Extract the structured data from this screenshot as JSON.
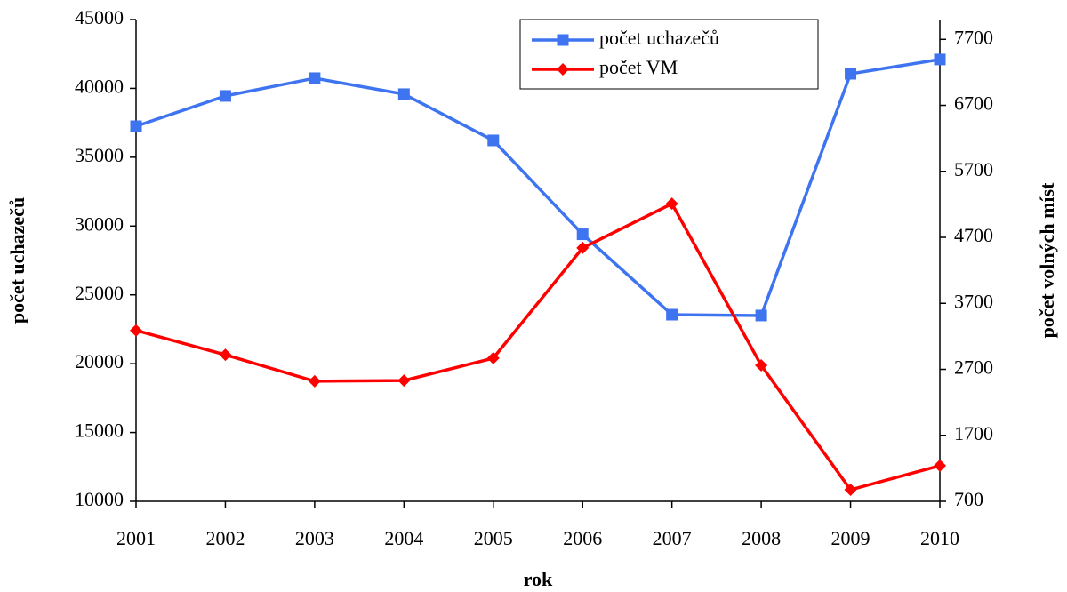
{
  "chart_data": {
    "type": "line",
    "x_label": "rok",
    "y_label": "počet uchazečů",
    "y2_label": "počet volných míst",
    "x": [
      2001,
      2002,
      2003,
      2004,
      2005,
      2006,
      2007,
      2008,
      2009,
      2010
    ],
    "xlim": [
      2001,
      2010
    ],
    "xticks": [
      2001,
      2002,
      2003,
      2004,
      2005,
      2006,
      2007,
      2008,
      2009,
      2010
    ],
    "ylim": [
      10000,
      45000
    ],
    "yticks": [
      10000,
      15000,
      20000,
      25000,
      30000,
      35000,
      40000,
      45000
    ],
    "y2lim": [
      700,
      8000
    ],
    "y2ticks": [
      700,
      1700,
      2700,
      3700,
      4700,
      5700,
      6700,
      7700
    ],
    "grid": false,
    "legend": "top",
    "series": [
      {
        "name": "počet uchazečů",
        "color": "#3e74f0",
        "marker": "square",
        "values": [
          37250,
          39450,
          40740,
          39580,
          36220,
          29400,
          23560,
          23500,
          41060,
          42100
        ]
      },
      {
        "name": "počet VM",
        "color": "#ff0000",
        "marker": "diamond",
        "axis": "y2",
        "values": [
          3290,
          2920,
          2520,
          2530,
          2870,
          4540,
          5210,
          2760,
          875,
          1240
        ]
      }
    ]
  }
}
